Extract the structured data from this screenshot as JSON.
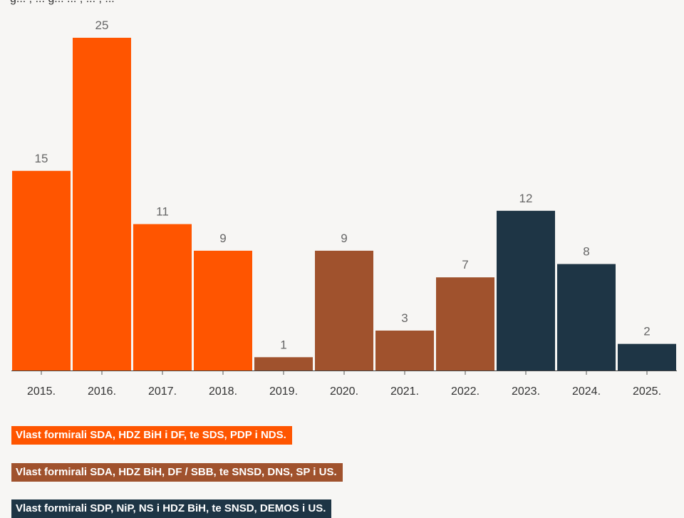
{
  "header_fragment": "g... , ... g... ... , ... , ...",
  "chart_data": {
    "type": "bar",
    "categories": [
      "2015.",
      "2016.",
      "2017.",
      "2018.",
      "2019.",
      "2020.",
      "2021.",
      "2022.",
      "2023.",
      "2024.",
      "2025."
    ],
    "values": [
      15,
      25,
      11,
      9,
      1,
      9,
      3,
      7,
      12,
      8,
      2
    ],
    "groups": [
      0,
      0,
      0,
      0,
      1,
      1,
      1,
      1,
      2,
      2,
      2
    ],
    "ylim": [
      0,
      25
    ],
    "title": "",
    "xlabel": "",
    "ylabel": ""
  },
  "legend": [
    {
      "label": "Vlast formirali SDA, HDZ BiH i DF, te SDS, PDP i NDS.",
      "color": "#ff5500"
    },
    {
      "label": "Vlast formirali SDA, HDZ BiH, DF / SBB, te SNSD, DNS, SP i US.",
      "color": "#a0522d"
    },
    {
      "label": "Vlast formirali SDP, NiP, NS i HDZ BiH, te SNSD, DEMOS i US.",
      "color": "#1e3545"
    }
  ]
}
